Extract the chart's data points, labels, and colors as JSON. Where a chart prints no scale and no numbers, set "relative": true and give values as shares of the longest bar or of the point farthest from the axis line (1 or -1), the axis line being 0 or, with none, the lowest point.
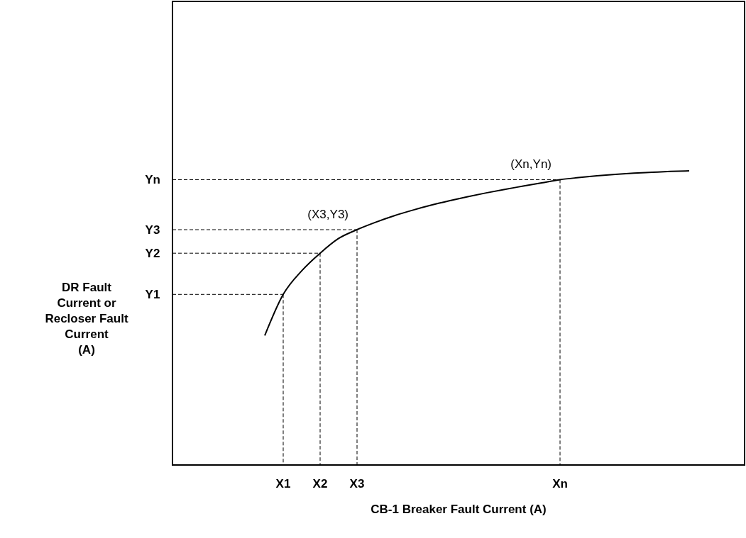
{
  "chart_data": {
    "type": "line",
    "relative": true,
    "xlabel": "CB-1 Breaker Fault Current (A)",
    "ylabel": "DR Fault\nCurrent or\nRecloser Fault\nCurrent\n(A)",
    "categories": [
      null,
      null,
      null,
      null,
      null,
      "X1",
      null,
      "X2",
      null,
      "X3",
      null,
      null,
      null,
      null,
      null,
      null,
      null,
      null,
      null,
      null,
      "Xn",
      null,
      null,
      null,
      null,
      null,
      null,
      null,
      null,
      null
    ],
    "series": [
      {
        "color": "#000000",
        "values": [
          null,
          null,
          null,
          null,
          0.44,
          0.58,
          0.66,
          0.72,
          0.77,
          0.8,
          0.825,
          0.847,
          0.866,
          0.883,
          0.898,
          0.912,
          0.925,
          0.937,
          0.948,
          0.959,
          0.97,
          0.977,
          0.983,
          0.988,
          0.992,
          0.995,
          0.998,
          1.0,
          null,
          null
        ]
      }
    ],
    "ref_lines": [
      {
        "axis": "x",
        "value": "X1",
        "line_style": "dashed"
      },
      {
        "axis": "x",
        "value": "X2",
        "line_style": "dashed"
      },
      {
        "axis": "x",
        "value": "X3",
        "line_style": "dashed"
      },
      {
        "axis": "x",
        "value": "Xn",
        "line_style": "dashed"
      },
      {
        "axis": "y",
        "value": 0.58,
        "label": "Y1",
        "line_style": "dashed"
      },
      {
        "axis": "y",
        "value": 0.72,
        "label": "Y2",
        "line_style": "dashed"
      },
      {
        "axis": "y",
        "value": 0.8,
        "label": "Y3",
        "line_style": "dashed"
      },
      {
        "axis": "y",
        "value": 0.97,
        "label": "Yn",
        "line_style": "dashed"
      }
    ],
    "annotations": [
      {
        "text": "(X3,Y3)",
        "x": "X3",
        "y": 0.8
      },
      {
        "text": "(Xn,Yn)",
        "x": "Xn",
        "y": 0.97
      }
    ],
    "grid": false,
    "marker": "none",
    "line_style": "solid"
  }
}
